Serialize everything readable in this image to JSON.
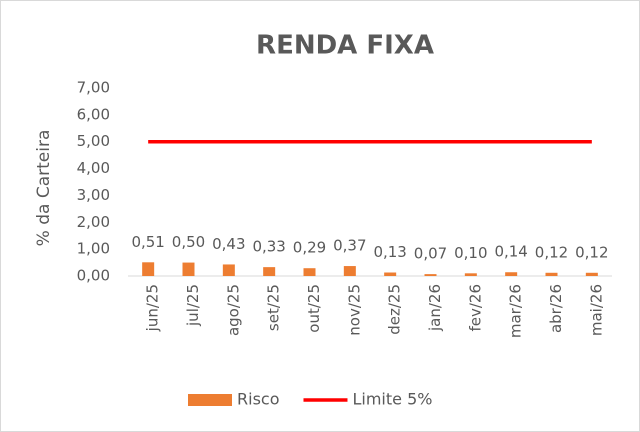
{
  "chart_data": {
    "type": "bar",
    "title": "RENDA FIXA",
    "ylabel": "% da Carteira",
    "categories": [
      "jun/25",
      "jul/25",
      "ago/25",
      "set/25",
      "out/25",
      "nov/25",
      "dez/25",
      "jan/26",
      "fev/26",
      "mar/26",
      "abr/26",
      "mai/26"
    ],
    "series": [
      {
        "name": "Risco",
        "type": "bar",
        "color": "#ed7d31",
        "values": [
          0.51,
          0.5,
          0.43,
          0.33,
          0.29,
          0.37,
          0.13,
          0.07,
          0.1,
          0.14,
          0.12,
          0.12
        ],
        "value_labels": [
          "0,51",
          "0,50",
          "0,43",
          "0,33",
          "0,29",
          "0,37",
          "0,13",
          "0,07",
          "0,10",
          "0,14",
          "0,12",
          "0,12"
        ]
      },
      {
        "name": "Limite 5%",
        "type": "line",
        "color": "#ff0000",
        "values": [
          5,
          5,
          5,
          5,
          5,
          5,
          5,
          5,
          5,
          5,
          5,
          5
        ]
      }
    ],
    "ylim": [
      0,
      7
    ],
    "yticks": [
      {
        "value": 0,
        "label": "0,00"
      },
      {
        "value": 1,
        "label": "1,00"
      },
      {
        "value": 2,
        "label": "2,00"
      },
      {
        "value": 3,
        "label": "3,00"
      },
      {
        "value": 4,
        "label": "4,00"
      },
      {
        "value": 5,
        "label": "5,00"
      },
      {
        "value": 6,
        "label": "6,00"
      },
      {
        "value": 7,
        "label": "7,00"
      }
    ],
    "grid": false,
    "legend": "bottom"
  }
}
